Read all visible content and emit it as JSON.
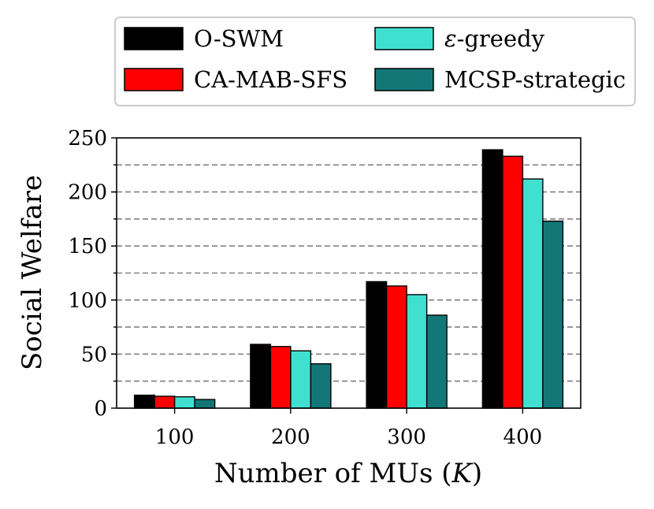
{
  "chart_data": {
    "type": "bar",
    "title": "",
    "xlabel": "Number of MUs (",
    "xlabel_var": "K",
    "xlabel_end": ")",
    "ylabel": "Social Welfare",
    "ylim": [
      0,
      250
    ],
    "yticks": [
      0,
      50,
      100,
      150,
      200,
      250
    ],
    "grid_lines": [
      25,
      50,
      75,
      100,
      125,
      150,
      175,
      200,
      225
    ],
    "categories": [
      "100",
      "200",
      "300",
      "400"
    ],
    "legend_position": "top",
    "series": [
      {
        "name": "O-SWM",
        "color": "#000000",
        "values": [
          12,
          59,
          117,
          239
        ]
      },
      {
        "name": "CA-MAB-SFS",
        "color": "#ff0000",
        "values": [
          11,
          57,
          113,
          233
        ]
      },
      {
        "name": "ε-greedy",
        "name_symbol": "ε",
        "name_rest": "-greedy",
        "color": "#40e0d0",
        "values": [
          10.5,
          53,
          105,
          212
        ]
      },
      {
        "name": "MCSP-strategic",
        "color": "#137777",
        "values": [
          8,
          41,
          86,
          173
        ]
      }
    ]
  }
}
